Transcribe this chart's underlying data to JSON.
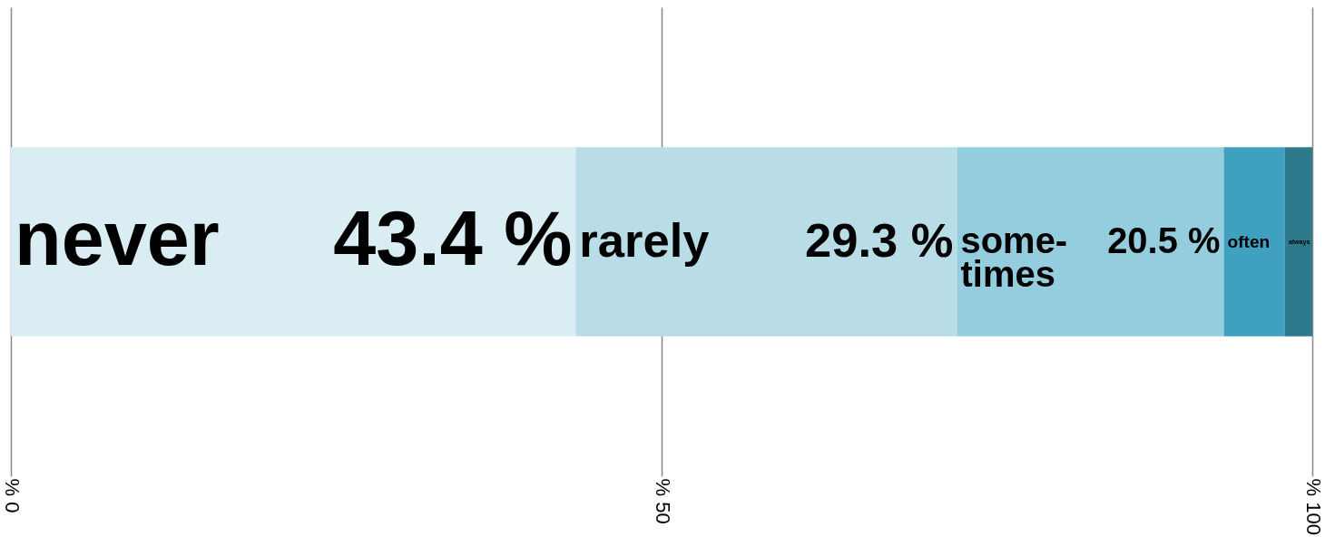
{
  "chart_data": {
    "type": "bar",
    "orientation": "horizontal",
    "stacked": true,
    "categories": [
      null
    ],
    "series": [
      {
        "name": "never",
        "color": "#daedf3",
        "values": [
          43.4
        ],
        "value_labels": [
          "43.4 %"
        ]
      },
      {
        "name": "rarely",
        "color": "#b8dde7",
        "values": [
          29.3
        ],
        "value_labels": [
          "29.3 %"
        ]
      },
      {
        "name": "some-times",
        "color": "#94cddd",
        "values": [
          20.5
        ],
        "value_labels": [
          "20.5 %"
        ]
      },
      {
        "name": "often",
        "color": "#3fa1bf",
        "values": [
          4.7
        ]
      },
      {
        "name": "always",
        "color": "#2e7a8d",
        "values": [
          2.1
        ]
      }
    ],
    "xlim": [
      0,
      100
    ],
    "xticks": [
      {
        "value": 0,
        "label": "% 0"
      },
      {
        "value": 50,
        "label": "% 50"
      },
      {
        "value": 100,
        "label": "% 100"
      }
    ],
    "grid": "x"
  }
}
